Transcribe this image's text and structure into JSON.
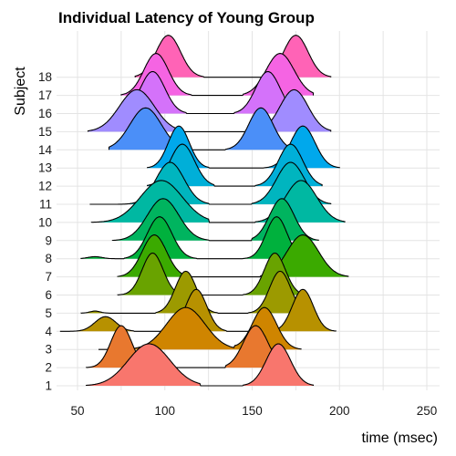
{
  "chart_data": {
    "type": "ridgeline",
    "title": "Individual Latency of Young Group",
    "xlabel": "time (msec)",
    "ylabel": "Subject",
    "xlim": [
      40,
      260
    ],
    "x_ticks": [
      50,
      100,
      150,
      200,
      250
    ],
    "categories": [
      "1",
      "2",
      "3",
      "4",
      "5",
      "6",
      "7",
      "8",
      "9",
      "10",
      "11",
      "12",
      "13",
      "14",
      "15",
      "16",
      "17",
      "18"
    ],
    "grid": true,
    "legend": "none",
    "series": [
      {
        "subject": "1",
        "color": "#F8766D",
        "peaks": [
          {
            "mean": 91,
            "sd": 12,
            "from": 55,
            "to": 120
          },
          {
            "mean": 165,
            "sd": 7,
            "from": 145,
            "to": 185
          }
        ]
      },
      {
        "subject": "2",
        "color": "#E8782F",
        "peaks": [
          {
            "mean": 75,
            "sd": 6,
            "from": 55,
            "to": 95
          },
          {
            "mean": 152,
            "sd": 7,
            "from": 135,
            "to": 170
          }
        ]
      },
      {
        "subject": "3",
        "color": "#CF8500",
        "peaks": [
          {
            "mean": 112,
            "sd": 11,
            "from": 62,
            "to": 148
          },
          {
            "mean": 157,
            "sd": 7,
            "from": 140,
            "to": 178
          }
        ]
      },
      {
        "subject": "4",
        "color": "#B79100",
        "peaks": [
          {
            "mean": 66,
            "sd": 6,
            "from": 40,
            "to": 82,
            "scale": 0.35
          },
          {
            "mean": 118,
            "sd": 6,
            "from": 100,
            "to": 135
          },
          {
            "mean": 179,
            "sd": 6,
            "from": 160,
            "to": 198
          }
        ]
      },
      {
        "subject": "5",
        "color": "#9C9A00",
        "peaks": [
          {
            "mean": 60,
            "sd": 3,
            "from": 52,
            "to": 70,
            "scale": 0.05
          },
          {
            "mean": 112,
            "sd": 6,
            "from": 95,
            "to": 130
          },
          {
            "mean": 166,
            "sd": 6,
            "from": 148,
            "to": 183
          }
        ]
      },
      {
        "subject": "6",
        "color": "#69A300",
        "peaks": [
          {
            "mean": 93,
            "sd": 6,
            "from": 73,
            "to": 112
          },
          {
            "mean": 163,
            "sd": 6,
            "from": 145,
            "to": 180
          }
        ]
      },
      {
        "subject": "7",
        "color": "#3BAA00",
        "peaks": [
          {
            "mean": 94,
            "sd": 7,
            "from": 73,
            "to": 115
          },
          {
            "mean": 179,
            "sd": 9,
            "from": 155,
            "to": 205
          }
        ]
      },
      {
        "subject": "8",
        "color": "#00B13D",
        "peaks": [
          {
            "mean": 60,
            "sd": 4,
            "from": 52,
            "to": 72,
            "scale": 0.05
          },
          {
            "mean": 97,
            "sd": 7,
            "from": 77,
            "to": 118
          },
          {
            "mean": 164,
            "sd": 6,
            "from": 145,
            "to": 182
          }
        ]
      },
      {
        "subject": "9",
        "color": "#00B45F",
        "peaks": [
          {
            "mean": 99,
            "sd": 9,
            "from": 70,
            "to": 125
          },
          {
            "mean": 167,
            "sd": 7,
            "from": 150,
            "to": 188
          }
        ]
      },
      {
        "subject": "10",
        "color": "#00B8A2",
        "peaks": [
          {
            "mean": 98,
            "sd": 12,
            "from": 58,
            "to": 125
          },
          {
            "mean": 178,
            "sd": 9,
            "from": 152,
            "to": 203
          }
        ]
      },
      {
        "subject": "11",
        "color": "#00B5BF",
        "peaks": [
          {
            "mean": 103,
            "sd": 8,
            "from": 57,
            "to": 125
          },
          {
            "mean": 172,
            "sd": 8,
            "from": 150,
            "to": 195
          }
        ]
      },
      {
        "subject": "12",
        "color": "#00AFD8",
        "peaks": [
          {
            "mean": 110,
            "sd": 7,
            "from": 90,
            "to": 128
          },
          {
            "mean": 172,
            "sd": 7,
            "from": 152,
            "to": 190
          }
        ]
      },
      {
        "subject": "13",
        "color": "#00A8EC",
        "peaks": [
          {
            "mean": 108,
            "sd": 6,
            "from": 90,
            "to": 125
          },
          {
            "mean": 179,
            "sd": 7,
            "from": 157,
            "to": 200
          }
        ]
      },
      {
        "subject": "14",
        "color": "#4B8FF8",
        "peaks": [
          {
            "mean": 89,
            "sd": 9,
            "from": 68,
            "to": 110
          },
          {
            "mean": 155,
            "sd": 7,
            "from": 135,
            "to": 172
          }
        ]
      },
      {
        "subject": "15",
        "color": "#A08CFF",
        "peaks": [
          {
            "mean": 84,
            "sd": 10,
            "from": 56,
            "to": 108
          },
          {
            "mean": 174,
            "sd": 8,
            "from": 153,
            "to": 195
          }
        ]
      },
      {
        "subject": "16",
        "color": "#D472FA",
        "peaks": [
          {
            "mean": 93,
            "sd": 7,
            "from": 72,
            "to": 112
          },
          {
            "mean": 159,
            "sd": 7,
            "from": 140,
            "to": 177
          }
        ]
      },
      {
        "subject": "17",
        "color": "#F564E3",
        "peaks": [
          {
            "mean": 95,
            "sd": 7,
            "from": 75,
            "to": 115
          },
          {
            "mean": 166,
            "sd": 8,
            "from": 145,
            "to": 185
          }
        ]
      },
      {
        "subject": "18",
        "color": "#FF63B6",
        "peaks": [
          {
            "mean": 102,
            "sd": 7,
            "from": 83,
            "to": 122
          },
          {
            "mean": 175,
            "sd": 7,
            "from": 157,
            "to": 195
          }
        ]
      }
    ]
  }
}
